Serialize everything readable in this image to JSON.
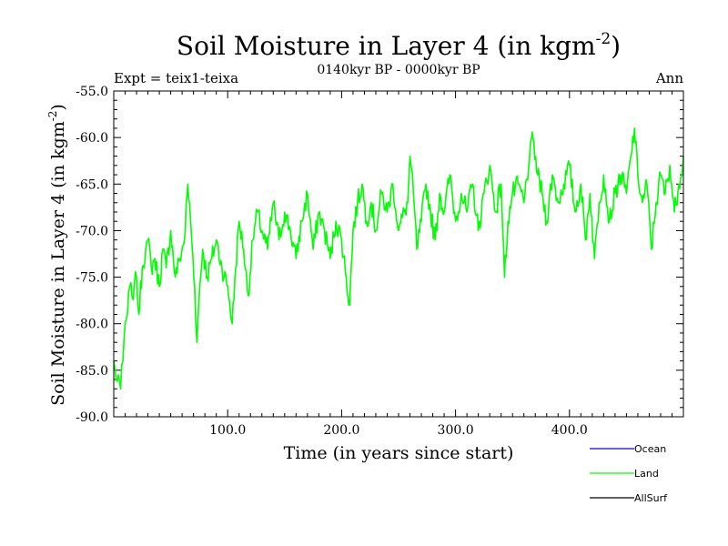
{
  "chart_data": {
    "type": "line",
    "title_main": "Soil Moisture in Layer 4 (in kgm",
    "title_sup": "-2",
    "title_close": ")",
    "subtitle": "0140kyr BP - 0000kyr BP",
    "expt_label": "Expt = teix1-teixa",
    "season_label": "Ann",
    "xlabel": "Time (in years since start)",
    "ylabel_main": "Soil Moisture in Layer 4 (in kgm",
    "ylabel_sup": "-2",
    "ylabel_close": ")",
    "xlim": [
      0,
      500
    ],
    "ylim": [
      -90,
      -55
    ],
    "xticks": [
      100,
      200,
      300,
      400
    ],
    "xtick_labels": [
      "100.0",
      "200.0",
      "300.0",
      "400.0"
    ],
    "yticks": [
      -90,
      -85,
      -80,
      -75,
      -70,
      -65,
      -60,
      -55
    ],
    "ytick_labels": [
      "-90.0",
      "-85.0",
      "-80.0",
      "-75.0",
      "-70.0",
      "-65.0",
      "-60.0",
      "-55.0"
    ],
    "legend": [
      {
        "name": "Ocean",
        "color": "#0000ff"
      },
      {
        "name": "Land",
        "color": "#00ff00"
      },
      {
        "name": "AllSurf",
        "color": "#000000"
      }
    ],
    "series": [
      {
        "name": "Land",
        "color": "#00ff00",
        "x": [
          0,
          2,
          4,
          6,
          8,
          10,
          12,
          14,
          16,
          18,
          20,
          22,
          25,
          28,
          30,
          33,
          36,
          40,
          43,
          46,
          50,
          54,
          58,
          62,
          65,
          68,
          71,
          73,
          75,
          78,
          82,
          86,
          90,
          95,
          100,
          104,
          107,
          110,
          114,
          118,
          122,
          126,
          130,
          135,
          140,
          145,
          150,
          155,
          160,
          165,
          170,
          175,
          180,
          185,
          190,
          195,
          200,
          204,
          207,
          210,
          214,
          218,
          222,
          226,
          230,
          235,
          240,
          245,
          250,
          255,
          258,
          260,
          263,
          266,
          270,
          274,
          278,
          282,
          286,
          290,
          295,
          300,
          305,
          310,
          315,
          320,
          325,
          330,
          335,
          340,
          343,
          346,
          350,
          355,
          360,
          365,
          368,
          372,
          376,
          380,
          385,
          390,
          395,
          400,
          405,
          410,
          414,
          418,
          422,
          426,
          430,
          435,
          440,
          445,
          450,
          454,
          457,
          460,
          464,
          468,
          472,
          476,
          480,
          484,
          488,
          492,
          496,
          500
        ],
        "values": [
          -84,
          -86,
          -85.5,
          -87,
          -84,
          -80,
          -79,
          -76,
          -77,
          -76,
          -75,
          -79,
          -74,
          -72,
          -71,
          -74,
          -73,
          -76,
          -72,
          -74,
          -70,
          -75,
          -73,
          -71,
          -65,
          -70,
          -76,
          -82,
          -77,
          -72,
          -75,
          -73,
          -71,
          -74,
          -76,
          -80,
          -74,
          -69,
          -72,
          -77,
          -71,
          -68,
          -70,
          -72,
          -67,
          -71,
          -68,
          -70,
          -73,
          -69,
          -66,
          -72,
          -68,
          -70,
          -73,
          -69,
          -71,
          -75,
          -78,
          -70,
          -67,
          -65,
          -69,
          -67,
          -70,
          -66,
          -68,
          -65,
          -70,
          -68,
          -67,
          -62,
          -66,
          -72,
          -69,
          -65,
          -68,
          -71,
          -66,
          -68,
          -64,
          -69,
          -66,
          -68,
          -65,
          -70,
          -66,
          -63,
          -68,
          -65,
          -75,
          -69,
          -66,
          -65,
          -67,
          -62,
          -60,
          -64,
          -66,
          -69,
          -64,
          -67,
          -65,
          -63,
          -68,
          -65,
          -71,
          -66,
          -73,
          -67,
          -64,
          -69,
          -66,
          -64,
          -66,
          -62,
          -59,
          -64,
          -67,
          -65,
          -72,
          -67,
          -64,
          -66,
          -63,
          -68,
          -65,
          -62
        ]
      }
    ]
  }
}
